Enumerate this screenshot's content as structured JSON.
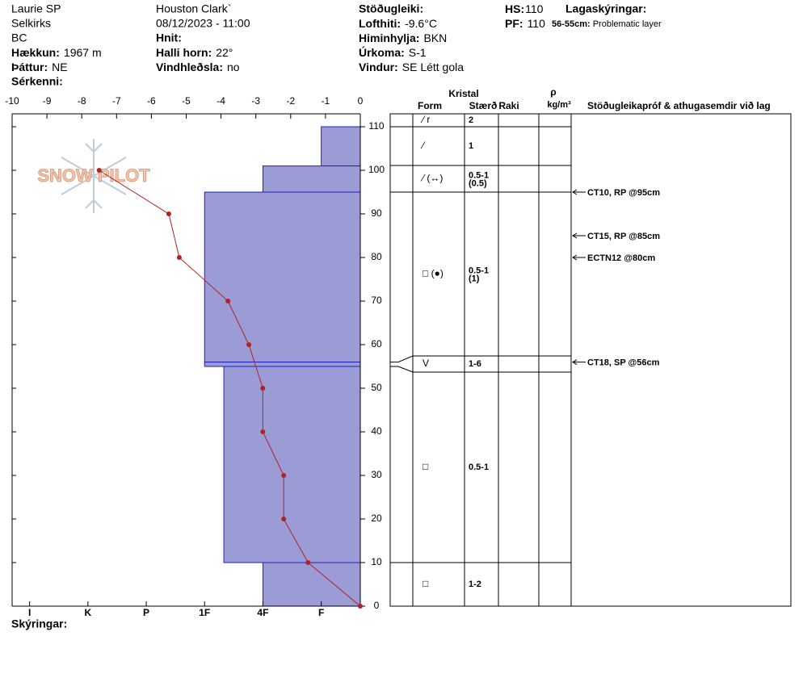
{
  "header": {
    "observer": "Laurie SP",
    "range": "Selkirks",
    "region": "BC",
    "elevation": {
      "label": "Hækkun:",
      "value": "1967 m"
    },
    "aspect": {
      "label": "Þáttur:",
      "value": "NE"
    },
    "features": {
      "label": "Sérkenni:"
    },
    "location": "Houston Clark`",
    "datetime": "08/12/2023 - 11:00",
    "coords": {
      "label": "Hnit:"
    },
    "slope": {
      "label": "Halli horn:",
      "value": "22°"
    },
    "wind_loading": {
      "label": "Vindhleðsla:",
      "value": "no"
    },
    "stability": {
      "label": "Stöðugleiki:"
    },
    "air_temp": {
      "label": "Lofthiti:",
      "value": "-9.6°C"
    },
    "sky": {
      "label": "Himinhylja:",
      "value": "BKN"
    },
    "precip": {
      "label": "Úrkoma:",
      "value": "S-1"
    },
    "wind": {
      "label": "Vindur:",
      "value": "SE Létt gola"
    },
    "hs": {
      "label": "HS:",
      "value": "110"
    },
    "pf": {
      "label": "PF:",
      "value": "110"
    },
    "legend_title": "Lagaskýringar:",
    "legend_item": {
      "label": "56-55cm:",
      "value": "Problematic layer"
    }
  },
  "chart_data": {
    "type": "snow-profile",
    "watermark": "SNOW PILOT",
    "xlim": [
      -10,
      0
    ],
    "xticks": [
      -10,
      -9,
      -8,
      -7,
      -6,
      -5,
      -4,
      -3,
      -2,
      -1,
      0
    ],
    "ylim": [
      0,
      110
    ],
    "yticks": [
      0,
      10,
      20,
      30,
      40,
      50,
      60,
      70,
      80,
      90,
      100,
      110
    ],
    "temperature": {
      "color": "#b22222",
      "heights": [
        100,
        90,
        80,
        70,
        60,
        50,
        40,
        30,
        20,
        10,
        0
      ],
      "values": [
        -7.5,
        -5.5,
        -5.2,
        -3.8,
        -3.2,
        -2.8,
        -2.8,
        -2.2,
        -2.2,
        -1.5,
        0
      ]
    },
    "hardness": {
      "color": "#9b9bd6",
      "edge": "#2020c0",
      "xlim": [
        6.3,
        0.33
      ],
      "xticks": [
        {
          "value": 6,
          "label": "I"
        },
        {
          "value": 5,
          "label": "K"
        },
        {
          "value": 4,
          "label": "P"
        },
        {
          "value": 3,
          "label": "1F"
        },
        {
          "value": 2,
          "label": "4F"
        },
        {
          "value": 1,
          "label": "F"
        }
      ],
      "layers": [
        {
          "bottom": 101,
          "top": 110,
          "value": 1
        },
        {
          "bottom": 95,
          "top": 101,
          "value": 2
        },
        {
          "bottom": 56,
          "top": 95,
          "value": 3
        },
        {
          "bottom": 55,
          "top": 56,
          "value": 3
        },
        {
          "bottom": 10,
          "top": 55,
          "value": 2.67
        },
        {
          "bottom": 0,
          "top": 10,
          "value": 2
        }
      ]
    },
    "table": {
      "crystal": "Kristal",
      "form": "Form",
      "size": "Stærð",
      "moisture": "Raki",
      "density_symbol": "ρ",
      "density_unit": "kg/m³",
      "tests_heading": "Stöðugleikapróf & athugasemdir við lag",
      "rows": [
        {
          "form": "⁄ r",
          "size": "2"
        },
        {
          "form": "⁄",
          "size": "1"
        },
        {
          "form": "⁄ (↔)",
          "size": "0.5-1",
          "size_sub": "(0.5)"
        },
        {
          "form": "□ (●)",
          "size": "0.5-1",
          "size_sub": "(1)"
        },
        {
          "form": "V",
          "size": "1-6"
        },
        {
          "form": "□",
          "size": "0.5-1"
        },
        {
          "form": "□",
          "size": "1-2"
        }
      ]
    },
    "tests": [
      {
        "height": 95,
        "label": "CT10, RP @95cm"
      },
      {
        "height": 85,
        "label": "CT15, RP @85cm"
      },
      {
        "height": 80,
        "label": "ECTN12 @80cm"
      },
      {
        "height": 56,
        "label": "CT18, SP @56cm"
      }
    ],
    "notes_label": "Skýringar:"
  }
}
